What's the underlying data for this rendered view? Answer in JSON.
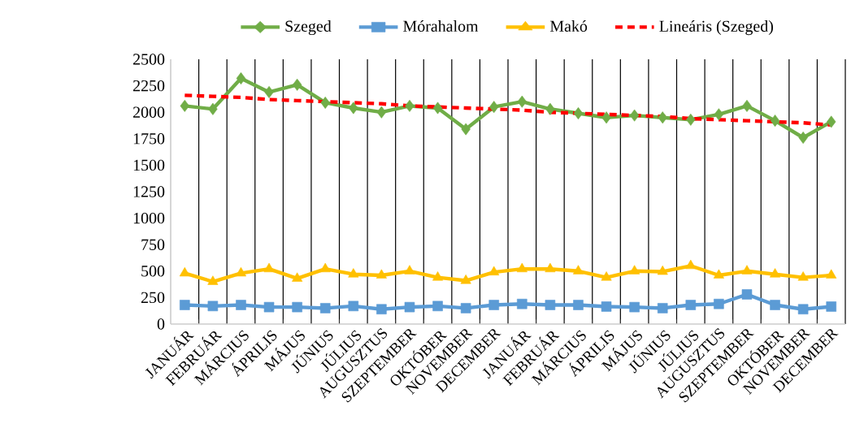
{
  "chart_data": {
    "type": "line",
    "categories": [
      "JANUÁR",
      "FEBRUÁR",
      "MÁRCIUS",
      "ÁPRILIS",
      "MÁJUS",
      "JÚNIUS",
      "JÚLIUS",
      "AUGUSZTUS",
      "SZEPTEMBER",
      "OKTÓBER",
      "NOVEMBER",
      "DECEMBER",
      "JANUÁR",
      "FEBRUÁR",
      "MÁRCIUS",
      "ÁPRILIS",
      "MÁJUS",
      "JÚNIUS",
      "JÚLIUS",
      "AUGUSZTUS",
      "SZEPTEMBER",
      "OKTÓBER",
      "NOVEMBER",
      "DECEMBER"
    ],
    "series": [
      {
        "name": "Szeged",
        "color": "#70ad47",
        "marker": "diamond",
        "values": [
          2060,
          2030,
          2320,
          2190,
          2260,
          2090,
          2040,
          2000,
          2060,
          2040,
          1840,
          2050,
          2100,
          2030,
          1990,
          1950,
          1970,
          1950,
          1930,
          1980,
          2060,
          1920,
          1760,
          1910
        ]
      },
      {
        "name": "Mórahalom",
        "color": "#5b9bd5",
        "marker": "square",
        "values": [
          180,
          170,
          180,
          160,
          160,
          150,
          170,
          140,
          160,
          170,
          150,
          180,
          190,
          180,
          180,
          165,
          160,
          150,
          180,
          190,
          280,
          180,
          140,
          165
        ]
      },
      {
        "name": "Makó",
        "color": "#ffc000",
        "marker": "triangle",
        "values": [
          480,
          400,
          480,
          520,
          430,
          520,
          470,
          460,
          500,
          440,
          410,
          490,
          520,
          520,
          500,
          440,
          500,
          495,
          550,
          460,
          500,
          470,
          440,
          460
        ]
      },
      {
        "name": "Lineáris (Szeged)",
        "color": "#ff0000",
        "marker": "none",
        "line_style": "dashed",
        "values": [
          2160,
          2150,
          2140,
          2120,
          2110,
          2100,
          2090,
          2080,
          2060,
          2050,
          2040,
          2030,
          2020,
          2000,
          1990,
          1980,
          1970,
          1960,
          1940,
          1930,
          1920,
          1910,
          1900,
          1880
        ]
      }
    ],
    "ylim": [
      0,
      2500
    ],
    "yticks": [
      0,
      250,
      500,
      750,
      1000,
      1250,
      1500,
      1750,
      2000,
      2250,
      2500
    ],
    "grid": "x",
    "legend": "top"
  }
}
